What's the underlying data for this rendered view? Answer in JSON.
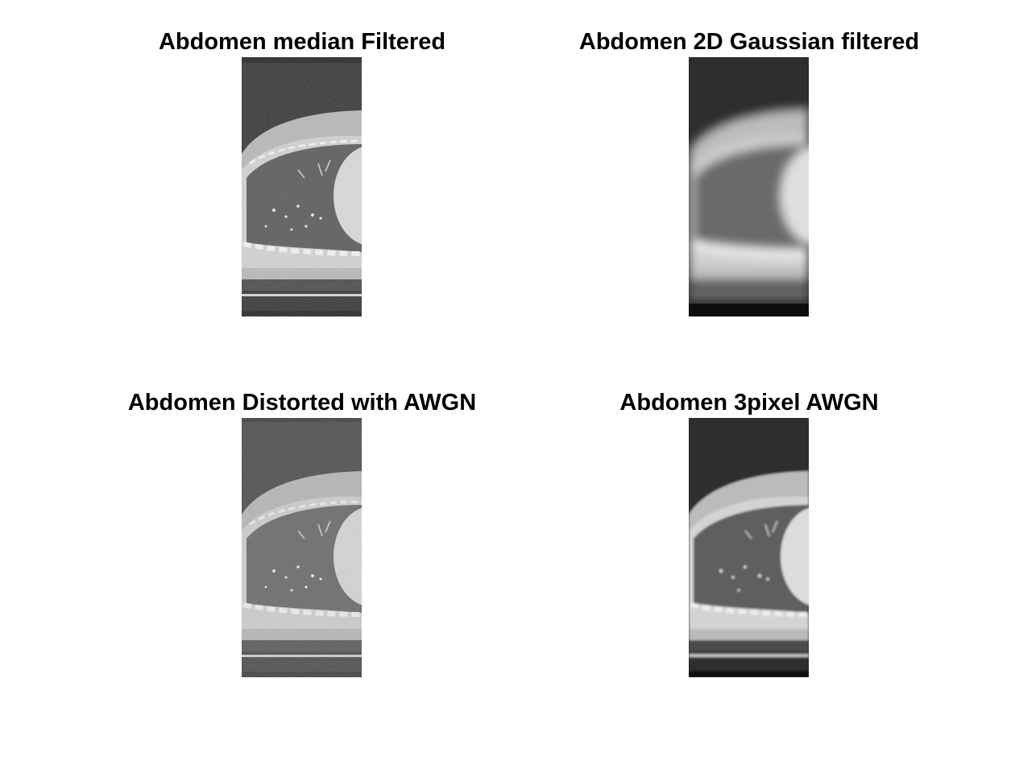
{
  "figure": {
    "panels": [
      {
        "title": "Abdomen median Filtered"
      },
      {
        "title": "Abdomen 2D Gaussian filtered"
      },
      {
        "title": "Abdomen Distorted with AWGN"
      },
      {
        "title": "Abdomen 3pixel AWGN"
      }
    ]
  },
  "colors": {
    "background": "#ffffff",
    "title_text": "#000000",
    "ct_dark": "#2f2f2f",
    "ct_tissue": "#c8c8c8",
    "ct_lung": "#5a5a5a",
    "ct_bright": "#e6e6e6"
  }
}
